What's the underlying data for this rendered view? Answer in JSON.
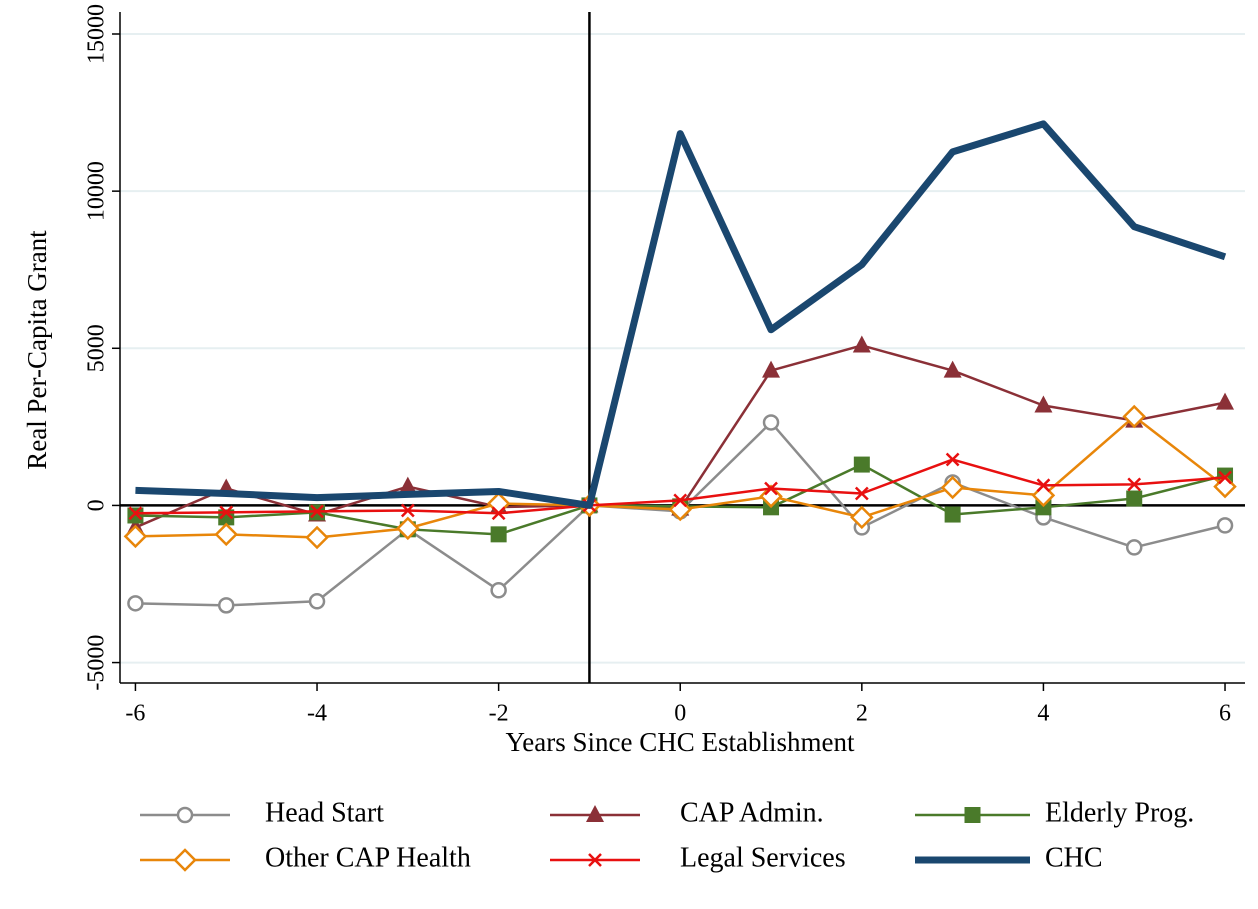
{
  "chart_data": {
    "type": "line",
    "x_label": "Years Since CHC Establishment",
    "y_label": "Real Per-Capita Grant",
    "x": [
      -6,
      -5,
      -4,
      -3,
      -2,
      -1,
      0,
      1,
      2,
      3,
      4,
      5,
      6
    ],
    "xlim": [
      -6.17,
      6.22
    ],
    "ylim": [
      -5650,
      15700
    ],
    "xticks": [
      -6,
      -4,
      -2,
      0,
      2,
      4,
      6
    ],
    "yticks": [
      -5000,
      0,
      5000,
      10000,
      15000
    ],
    "grid": true,
    "reference_lines": {
      "x": -1,
      "y": 0
    },
    "legend_position": "bottom",
    "series": [
      {
        "name": "Head Start",
        "color": "#8c8c8c",
        "marker": "circle-hollow",
        "line_width": 2.5,
        "values": [
          -3115,
          -3180,
          -3050,
          -760,
          -2700,
          0,
          -190,
          2640,
          -700,
          730,
          -380,
          -1335,
          -635
        ]
      },
      {
        "name": "CAP Admin.",
        "color": "#8b3037",
        "marker": "triangle",
        "line_width": 2.5,
        "values": [
          -700,
          540,
          -290,
          600,
          -50,
          0,
          -100,
          4290,
          5090,
          4290,
          3180,
          2700,
          3270
        ]
      },
      {
        "name": "Elderly Prog.",
        "color": "#4a7a2a",
        "marker": "square",
        "line_width": 2.5,
        "values": [
          -320,
          -380,
          -220,
          -760,
          -920,
          0,
          -30,
          -60,
          1300,
          -290,
          -60,
          220,
          950
        ]
      },
      {
        "name": "Other CAP Health",
        "color": "#e8860a",
        "marker": "diamond-hollow",
        "line_width": 2.5,
        "values": [
          -985,
          -920,
          -1020,
          -730,
          60,
          0,
          -130,
          290,
          -380,
          570,
          320,
          2830,
          600
        ]
      },
      {
        "name": "Legal Services",
        "color": "#e81010",
        "marker": "x",
        "line_width": 2.5,
        "values": [
          -250,
          -220,
          -190,
          -160,
          -250,
          0,
          160,
          540,
          380,
          1460,
          640,
          670,
          890
        ]
      },
      {
        "name": "CHC",
        "color": "#1a476f",
        "marker": "none",
        "line_width": 7,
        "values": [
          480,
          380,
          250,
          350,
          445,
          0,
          11830,
          5590,
          7660,
          11250,
          12140,
          8870,
          7910
        ]
      }
    ]
  }
}
